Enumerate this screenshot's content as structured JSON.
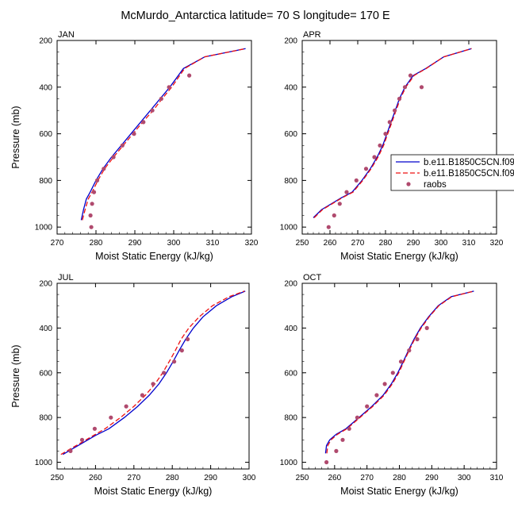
{
  "figure": {
    "title": "McMurdo_Antarctica  latitude= 70 S longitude= 170 E"
  },
  "legend": {
    "entries": [
      {
        "label": "b.e11.B1850C5CN.f09",
        "color": "#0000cc",
        "style": "solid"
      },
      {
        "label": "b.e11.B1850C5CN.f09",
        "color": "#ee1111",
        "style": "dashed"
      },
      {
        "label": "raobs",
        "color": "#b04a6e",
        "style": "marker"
      }
    ]
  },
  "chart_data": [
    {
      "type": "line",
      "title": "JAN",
      "xlabel": "Moist Static Energy (kJ/kg)",
      "ylabel": "Pressure (mb)",
      "xlim": [
        270,
        320
      ],
      "ylim": [
        1030,
        200
      ],
      "xticks": [
        270,
        280,
        290,
        300,
        310,
        320
      ],
      "yticks": [
        200,
        400,
        600,
        800,
        1000
      ],
      "series": [
        {
          "x": [
            276.2,
            276.8,
            277.5,
            278.5,
            280,
            281.8,
            284,
            286.5,
            289,
            291.5,
            294,
            296.5,
            299,
            302.5,
            308,
            318.5
          ],
          "y": [
            970,
            925,
            880,
            850,
            800,
            750,
            700,
            650,
            600,
            550,
            500,
            450,
            400,
            320,
            270,
            235
          ]
        },
        {
          "x": [
            276.5,
            277.2,
            278,
            279,
            280.5,
            282.2,
            284.5,
            287,
            289.5,
            292,
            294.7,
            297,
            299.5,
            302.8,
            308,
            318.5
          ],
          "y": [
            970,
            925,
            880,
            850,
            800,
            750,
            700,
            650,
            600,
            550,
            500,
            450,
            400,
            320,
            270,
            235
          ]
        },
        {
          "x": [
            278.8,
            278.6,
            279,
            279.5,
            280.3,
            282,
            284.5,
            286.8,
            289.8,
            292.2,
            294.5,
            296.8,
            298.8,
            304
          ],
          "y": [
            1000,
            950,
            900,
            850,
            800,
            750,
            700,
            650,
            600,
            550,
            500,
            450,
            400,
            350
          ]
        }
      ]
    },
    {
      "type": "line",
      "title": "APR",
      "xlabel": "Moist Static Energy (kJ/kg)",
      "ylabel": "",
      "xlim": [
        250,
        320
      ],
      "ylim": [
        1030,
        200
      ],
      "xticks": [
        250,
        260,
        270,
        280,
        290,
        300,
        310,
        320
      ],
      "yticks": [
        200,
        400,
        600,
        800,
        1000
      ],
      "series": [
        {
          "x": [
            254,
            257,
            260.5,
            264,
            268,
            271.5,
            274.5,
            277,
            279,
            280.5,
            282,
            283.5,
            285,
            287,
            290,
            294.5,
            301,
            311
          ],
          "y": [
            960,
            925,
            900,
            875,
            850,
            800,
            750,
            700,
            650,
            600,
            550,
            500,
            450,
            400,
            350,
            320,
            270,
            235
          ]
        },
        {
          "x": [
            254.3,
            257.3,
            260.8,
            264.3,
            268.3,
            271.8,
            274.8,
            277.3,
            279.3,
            280.8,
            282.3,
            283.8,
            285.3,
            287.3,
            290.3,
            294.7,
            301,
            311
          ],
          "y": [
            960,
            925,
            900,
            875,
            850,
            800,
            750,
            700,
            650,
            600,
            550,
            500,
            450,
            400,
            350,
            320,
            270,
            235
          ]
        },
        {
          "x": [
            259.5,
            261.5,
            263.5,
            266,
            269.5,
            273,
            276,
            278,
            280,
            281.5,
            283.3,
            285,
            287,
            289,
            293
          ],
          "y": [
            1000,
            950,
            900,
            850,
            800,
            750,
            700,
            650,
            600,
            550,
            500,
            450,
            400,
            350,
            400
          ]
        }
      ]
    },
    {
      "type": "line",
      "title": "JUL",
      "xlabel": "Moist Static Energy (kJ/kg)",
      "ylabel": "Pressure (mb)",
      "xlim": [
        250,
        300
      ],
      "ylim": [
        1030,
        200
      ],
      "xticks": [
        250,
        260,
        270,
        280,
        290,
        300
      ],
      "yticks": [
        200,
        400,
        600,
        800,
        1000
      ],
      "series": [
        {
          "x": [
            251.5,
            254,
            257,
            260,
            263.5,
            267.5,
            271,
            274,
            276.5,
            278.5,
            280.2,
            281.8,
            283.5,
            285.5,
            288,
            291.5,
            295.5,
            299
          ],
          "y": [
            965,
            940,
            910,
            880,
            850,
            800,
            750,
            700,
            650,
            600,
            550,
            500,
            450,
            400,
            350,
            300,
            260,
            235
          ]
        },
        {
          "x": [
            251,
            253.5,
            256.5,
            259.5,
            262.5,
            266.5,
            270,
            273,
            275.5,
            277.5,
            279.2,
            280.8,
            282.3,
            284.3,
            287,
            290.5,
            294.8,
            298.8
          ],
          "y": [
            965,
            940,
            910,
            880,
            850,
            800,
            750,
            700,
            650,
            600,
            550,
            500,
            450,
            400,
            350,
            300,
            260,
            235
          ]
        },
        {
          "x": [
            253.5,
            256.5,
            259.8,
            264,
            268,
            272.2,
            275,
            277.8,
            280.5,
            282.5,
            284
          ],
          "y": [
            950,
            900,
            850,
            800,
            750,
            700,
            650,
            600,
            550,
            500,
            450
          ]
        }
      ]
    },
    {
      "type": "line",
      "title": "OCT",
      "xlabel": "Moist Static Energy (kJ/kg)",
      "ylabel": "",
      "xlim": [
        250,
        310
      ],
      "ylim": [
        1030,
        200
      ],
      "xticks": [
        250,
        260,
        270,
        280,
        290,
        300,
        310
      ],
      "yticks": [
        200,
        400,
        600,
        800,
        1000
      ],
      "series": [
        {
          "x": [
            257.2,
            257.5,
            258.5,
            260.5,
            263.5,
            267.5,
            271.5,
            275,
            277.5,
            279.5,
            281.2,
            282.8,
            284.5,
            286.5,
            289,
            292,
            296,
            303
          ],
          "y": [
            960,
            925,
            900,
            875,
            850,
            800,
            750,
            700,
            650,
            600,
            550,
            500,
            450,
            400,
            350,
            300,
            260,
            235
          ]
        },
        {
          "x": [
            257.6,
            257.9,
            258.9,
            260.9,
            263.8,
            267.8,
            271.8,
            275.3,
            277.8,
            279.8,
            281.4,
            283,
            284.7,
            286.7,
            289.2,
            292.2,
            296.2,
            303
          ],
          "y": [
            960,
            925,
            900,
            875,
            850,
            800,
            750,
            700,
            650,
            600,
            550,
            500,
            450,
            400,
            350,
            300,
            260,
            235
          ]
        },
        {
          "x": [
            257.5,
            260.5,
            262.5,
            264.5,
            267,
            270,
            273,
            275.5,
            278,
            280.5,
            283,
            285.5,
            288.5
          ],
          "y": [
            1000,
            950,
            900,
            850,
            800,
            750,
            700,
            650,
            600,
            550,
            500,
            450,
            400
          ]
        }
      ]
    }
  ]
}
